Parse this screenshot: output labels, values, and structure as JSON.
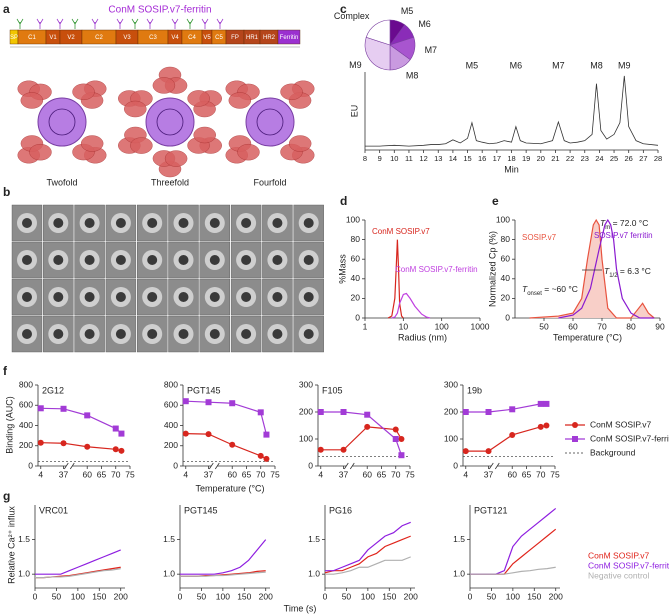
{
  "panel_labels": [
    "a",
    "b",
    "c",
    "d",
    "e",
    "f",
    "g"
  ],
  "figure_a": {
    "title": "ConM SOSIP.v7-ferritin",
    "domains": [
      "SP",
      "C1",
      "V1",
      "V2",
      "C2",
      "V3",
      "C3",
      "V4",
      "C4",
      "V5",
      "C5",
      "FP",
      "HR1",
      "HR2",
      "Ferritin"
    ],
    "views": [
      "Twofold",
      "Threefold",
      "Fourfold"
    ]
  },
  "panel_f": {
    "ylabel": "Binding (AUC)",
    "xlabel": "Temperature (°C)",
    "background_label": "Background"
  },
  "panel_g": {
    "ylabel": "Relative Ca²⁺ influx",
    "xlabel": "Time (s)"
  },
  "chart_data": [
    {
      "type": "pie",
      "labels": [
        "M5",
        "M6",
        "M7",
        "M8",
        "M9",
        "Complex"
      ],
      "values": [
        10,
        10,
        15,
        15,
        30,
        20
      ],
      "colors": [
        "#6a0a8f",
        "#8a2cb8",
        "#a855cf",
        "#c99ae0",
        "#e6cdf1",
        "#ffffff"
      ]
    },
    {
      "type": "line",
      "ylabel": "EU",
      "xlabel": "Min",
      "x": [
        8,
        9,
        10,
        11,
        12,
        12.5,
        13,
        13.5,
        14,
        14.5,
        15,
        15.3,
        15.6,
        16,
        16.5,
        17,
        17.5,
        18,
        18.3,
        18.6,
        19,
        20,
        20.8,
        21.2,
        21.6,
        22,
        22.5,
        23,
        23.5,
        23.8,
        24.1,
        24.5,
        25,
        25.4,
        25.7,
        26,
        26.5,
        27,
        28
      ],
      "xlim": [
        8,
        28
      ],
      "xticks": [
        8,
        9,
        10,
        11,
        12,
        13,
        14,
        15,
        16,
        17,
        18,
        19,
        20,
        21,
        22,
        23,
        24,
        25,
        26,
        27,
        28
      ],
      "ylim": [
        0,
        1
      ],
      "annotations": [
        {
          "text": "M5",
          "x": 15.3
        },
        {
          "text": "M6",
          "x": 18.3
        },
        {
          "text": "M7",
          "x": 21.2
        },
        {
          "text": "M8",
          "x": 23.8
        },
        {
          "text": "M9",
          "x": 25.7
        }
      ],
      "series": [
        {
          "color": "#333333",
          "values": [
            0.05,
            0.05,
            0.06,
            0.05,
            0.06,
            0.07,
            0.07,
            0.08,
            0.13,
            0.09,
            0.15,
            0.35,
            0.12,
            0.1,
            0.08,
            0.09,
            0.12,
            0.1,
            0.3,
            0.12,
            0.09,
            0.08,
            0.12,
            0.36,
            0.12,
            0.09,
            0.1,
            0.12,
            0.2,
            0.85,
            0.25,
            0.14,
            0.2,
            0.35,
            0.95,
            0.3,
            0.12,
            0.08,
            0.06
          ]
        }
      ]
    },
    {
      "type": "line",
      "ylabel": "%Mass",
      "xlabel": "Radius (nm)",
      "xlog": true,
      "xlim": [
        1,
        1000
      ],
      "xticks": [
        1,
        10,
        100,
        1000
      ],
      "ylim": [
        0,
        100
      ],
      "yticks": [
        0,
        20,
        40,
        60,
        80,
        100
      ],
      "series": [
        {
          "name": "ConM SOSIP.v7",
          "color": "#d7261e",
          "x": [
            4,
            5,
            6,
            6.5,
            7,
            7.5,
            8,
            9,
            10
          ],
          "values": [
            0,
            2,
            20,
            50,
            80,
            50,
            15,
            2,
            0
          ]
        },
        {
          "name": "ConM SOSIP.v7-ferritin",
          "color": "#c040e0",
          "x": [
            5,
            6,
            7,
            8,
            10,
            12,
            15,
            20,
            30,
            40,
            50
          ],
          "values": [
            0,
            1,
            5,
            15,
            24,
            25,
            20,
            12,
            4,
            1,
            0
          ]
        }
      ]
    },
    {
      "type": "line",
      "ylabel": "Normalized Cp (%)",
      "xlabel": "Temperature (°C)",
      "xlim": [
        40,
        90
      ],
      "xticks": [
        50,
        60,
        70,
        80,
        90
      ],
      "ylim": [
        0,
        100
      ],
      "yticks": [
        0,
        20,
        40,
        60,
        80,
        100
      ],
      "annotations": [
        {
          "text": "T",
          "sub": "m",
          "rest": " = 72.0 °C"
        },
        {
          "text": "T",
          "sub": "1/2",
          "rest": " = 6.3 °C"
        },
        {
          "text": "T",
          "sub": "onset",
          "rest": " = ~60 °C"
        }
      ],
      "series": [
        {
          "name": "SOSIP.v7",
          "color": "#e8533f",
          "fill": "#f8cfc8",
          "x": [
            45,
            55,
            60,
            63,
            65,
            67,
            68,
            69,
            70,
            72,
            75,
            80,
            84,
            86,
            88
          ],
          "values": [
            0,
            2,
            5,
            20,
            60,
            95,
            100,
            95,
            60,
            10,
            0,
            0,
            15,
            5,
            0
          ]
        },
        {
          "name": "SOSIP.v7 ferritin",
          "color": "#8a1ad0",
          "x": [
            55,
            60,
            63,
            66,
            69,
            71,
            72,
            73,
            74,
            75,
            77,
            80,
            83,
            86,
            88
          ],
          "values": [
            0,
            3,
            10,
            30,
            70,
            95,
            100,
            95,
            80,
            50,
            20,
            5,
            0,
            0,
            0
          ]
        }
      ]
    },
    {
      "type": "line",
      "title": "2G12",
      "x": [
        4,
        37,
        60,
        70,
        72
      ],
      "xlim": [
        0,
        75
      ],
      "xbreak": [
        40,
        55
      ],
      "xticks": [
        4,
        37,
        60,
        65,
        70,
        75
      ],
      "ylim": [
        0,
        800
      ],
      "yticks": [
        0,
        200,
        400,
        600,
        800
      ],
      "background": 45,
      "series": [
        {
          "name": "ConM SOSIP.v7",
          "color": "#d7261e",
          "marker": "circle",
          "values": [
            230,
            225,
            190,
            165,
            150
          ]
        },
        {
          "name": "ConM SOSIP.v7-ferritin",
          "color": "#a23bd6",
          "marker": "square",
          "values": [
            570,
            565,
            500,
            370,
            320
          ]
        }
      ]
    },
    {
      "type": "line",
      "title": "PGT145",
      "x": [
        4,
        37,
        60,
        70,
        72
      ],
      "xlim": [
        0,
        75
      ],
      "xbreak": [
        40,
        55
      ],
      "xticks": [
        4,
        37,
        60,
        65,
        70,
        75
      ],
      "ylim": [
        0,
        800
      ],
      "yticks": [
        0,
        200,
        400,
        600,
        800
      ],
      "background": 45,
      "series": [
        {
          "name": "ConM SOSIP.v7",
          "color": "#d7261e",
          "marker": "circle",
          "values": [
            320,
            315,
            210,
            100,
            70
          ]
        },
        {
          "name": "ConM SOSIP.v7-ferritin",
          "color": "#a23bd6",
          "marker": "square",
          "values": [
            640,
            630,
            620,
            530,
            310
          ]
        }
      ]
    },
    {
      "type": "line",
      "title": "F105",
      "x": [
        4,
        37,
        60,
        70,
        72
      ],
      "xlim": [
        0,
        75
      ],
      "xbreak": [
        40,
        55
      ],
      "xticks": [
        4,
        37,
        60,
        65,
        70,
        75
      ],
      "ylim": [
        0,
        300
      ],
      "yticks": [
        0,
        100,
        200,
        300
      ],
      "background": 35,
      "series": [
        {
          "name": "ConM SOSIP.v7",
          "color": "#d7261e",
          "marker": "circle",
          "values": [
            60,
            60,
            145,
            135,
            100
          ]
        },
        {
          "name": "ConM SOSIP.v7-ferritin",
          "color": "#a23bd6",
          "marker": "square",
          "values": [
            200,
            200,
            190,
            100,
            40
          ]
        }
      ]
    },
    {
      "type": "line",
      "title": "19b",
      "x": [
        4,
        37,
        60,
        70,
        72
      ],
      "xlim": [
        0,
        75
      ],
      "xbreak": [
        40,
        55
      ],
      "xticks": [
        4,
        37,
        60,
        65,
        70,
        75
      ],
      "ylim": [
        0,
        300
      ],
      "yticks": [
        0,
        100,
        200,
        300
      ],
      "background": 35,
      "series": [
        {
          "name": "ConM SOSIP.v7",
          "color": "#d7261e",
          "marker": "circle",
          "values": [
            55,
            55,
            115,
            145,
            150
          ]
        },
        {
          "name": "ConM SOSIP.v7-ferritin",
          "color": "#a23bd6",
          "marker": "square",
          "values": [
            200,
            200,
            210,
            230,
            230
          ]
        }
      ]
    },
    {
      "type": "line",
      "title": "VRC01",
      "x": [
        0,
        20,
        40,
        60,
        80,
        100,
        120,
        140,
        160,
        180,
        200
      ],
      "xlim": [
        0,
        210
      ],
      "xticks": [
        0,
        50,
        100,
        150,
        200
      ],
      "ylim": [
        0.8,
        2.0
      ],
      "yticks": [
        {
          "value": 1,
          "label": "1.0"
        },
        {
          "value": 1.5,
          "label": "1.5"
        }
      ],
      "series": [
        {
          "name": "ConM SOSIP.v7",
          "color": "#e0241b",
          "values": [
            0.95,
            0.95,
            0.96,
            0.97,
            0.98,
            1.0,
            1.02,
            1.04,
            1.06,
            1.08,
            1.1
          ]
        },
        {
          "name": "ConM SOSIP.v7-ferritin",
          "color": "#8e1ee0",
          "values": [
            1.0,
            1.0,
            1.0,
            1.0,
            1.05,
            1.1,
            1.15,
            1.2,
            1.25,
            1.3,
            1.35
          ]
        },
        {
          "name": "Negative control",
          "color": "#b0b0b0",
          "values": [
            0.95,
            0.95,
            0.96,
            0.96,
            0.97,
            0.99,
            1.01,
            1.03,
            1.05,
            1.06,
            1.08
          ]
        }
      ]
    },
    {
      "type": "line",
      "title": "PGT145",
      "x": [
        0,
        20,
        40,
        60,
        80,
        100,
        120,
        140,
        160,
        180,
        200
      ],
      "xlim": [
        0,
        210
      ],
      "xticks": [
        0,
        50,
        100,
        150,
        200
      ],
      "ylim": [
        0.8,
        2.0
      ],
      "yticks": [
        {
          "value": 1,
          "label": "1.0"
        },
        {
          "value": 1.5,
          "label": "1.5"
        }
      ],
      "series": [
        {
          "name": "ConM SOSIP.v7",
          "color": "#e0241b",
          "values": [
            0.97,
            0.97,
            0.97,
            0.98,
            0.98,
            0.99,
            1.0,
            1.01,
            1.02,
            1.04,
            1.05
          ]
        },
        {
          "name": "ConM SOSIP.v7-ferritin",
          "color": "#8e1ee0",
          "values": [
            1.0,
            1.0,
            1.0,
            1.0,
            1.0,
            1.02,
            1.05,
            1.1,
            1.2,
            1.35,
            1.5
          ]
        },
        {
          "name": "Negative control",
          "color": "#b0b0b0",
          "values": [
            0.97,
            0.97,
            0.97,
            0.97,
            0.98,
            0.98,
            0.99,
            1.0,
            1.01,
            1.02,
            1.03
          ]
        }
      ]
    },
    {
      "type": "line",
      "title": "PG16",
      "x": [
        0,
        20,
        40,
        60,
        80,
        100,
        120,
        140,
        160,
        180,
        200
      ],
      "xlim": [
        0,
        210
      ],
      "xticks": [
        0,
        50,
        100,
        150,
        200
      ],
      "ylim": [
        0.8,
        2.0
      ],
      "yticks": [
        {
          "value": 1,
          "label": "1.0"
        },
        {
          "value": 1.5,
          "label": "1.5"
        }
      ],
      "series": [
        {
          "name": "ConM SOSIP.v7",
          "color": "#e0241b",
          "values": [
            1.02,
            1.05,
            1.05,
            1.1,
            1.15,
            1.25,
            1.3,
            1.4,
            1.45,
            1.5,
            1.55
          ]
        },
        {
          "name": "ConM SOSIP.v7-ferritin",
          "color": "#8e1ee0",
          "values": [
            1.05,
            1.05,
            1.1,
            1.15,
            1.2,
            1.35,
            1.45,
            1.55,
            1.6,
            1.7,
            1.75
          ]
        },
        {
          "name": "Negative control",
          "color": "#b0b0b0",
          "values": [
            1.0,
            1.0,
            1.02,
            1.05,
            1.1,
            1.1,
            1.15,
            1.2,
            1.2,
            1.2,
            1.25
          ]
        }
      ]
    },
    {
      "type": "line",
      "title": "PGT121",
      "x": [
        0,
        20,
        40,
        60,
        80,
        100,
        120,
        140,
        160,
        180,
        200
      ],
      "xlim": [
        0,
        210
      ],
      "xticks": [
        0,
        50,
        100,
        150,
        200
      ],
      "ylim": [
        0.8,
        2.0
      ],
      "yticks": [
        {
          "value": 1,
          "label": "1.0"
        },
        {
          "value": 1.5,
          "label": "1.5"
        }
      ],
      "series": [
        {
          "name": "ConM SOSIP.v7",
          "color": "#e0241b",
          "values": [
            1.0,
            1.0,
            1.0,
            1.0,
            1.0,
            1.15,
            1.25,
            1.35,
            1.45,
            1.55,
            1.65
          ]
        },
        {
          "name": "ConM SOSIP.v7-ferritin",
          "color": "#8e1ee0",
          "values": [
            1.0,
            1.0,
            1.0,
            1.0,
            1.05,
            1.4,
            1.55,
            1.65,
            1.75,
            1.85,
            1.95
          ]
        },
        {
          "name": "Negative control",
          "color": "#b0b0b0",
          "values": [
            1.0,
            1.0,
            1.0,
            1.0,
            1.0,
            1.02,
            1.04,
            1.05,
            1.07,
            1.08,
            1.1
          ]
        }
      ]
    }
  ]
}
